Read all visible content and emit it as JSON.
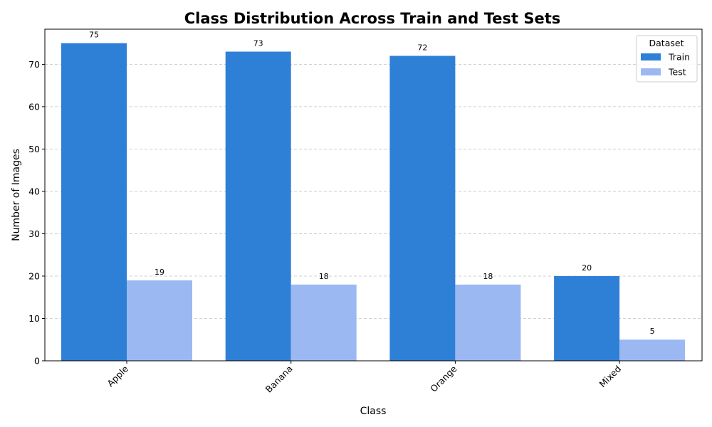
{
  "chart_data": {
    "type": "bar",
    "title": "Class Distribution Across Train and Test Sets",
    "xlabel": "Class",
    "ylabel": "Number of Images",
    "categories": [
      "Apple",
      "Banana",
      "Orange",
      "Mixed"
    ],
    "series": [
      {
        "name": "Train",
        "values": [
          75,
          73,
          72,
          20
        ],
        "color": "#2e7fd6"
      },
      {
        "name": "Test",
        "values": [
          19,
          18,
          18,
          5
        ],
        "color": "#9bb8f2"
      }
    ],
    "ylim": [
      0,
      78.3
    ],
    "yticks": [
      0,
      10,
      20,
      30,
      40,
      50,
      60,
      70
    ],
    "grid": "y-dashed",
    "legend": {
      "title": "Dataset",
      "placement": "top-right"
    },
    "data_labels": true
  }
}
